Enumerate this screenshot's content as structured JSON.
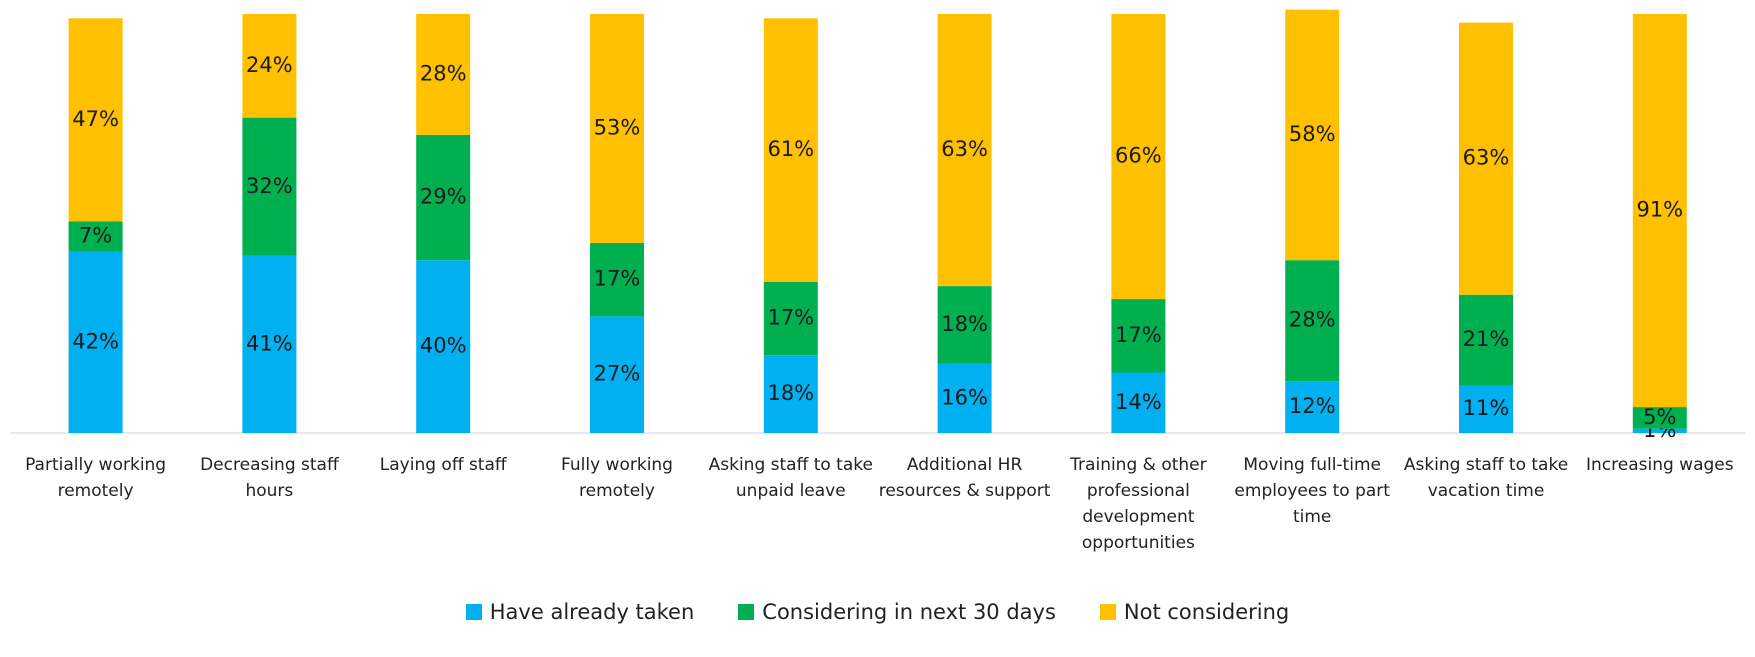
{
  "chart_data": {
    "type": "stacked_bar",
    "categories": [
      "Partially working remotely",
      "Decreasing staff hours",
      "Laying off staff",
      "Fully working remotely",
      "Asking staff to take unpaid leave",
      "Additional HR resources & support",
      "Training & other professional development opportunities",
      "Moving full-time employees to part time",
      "Asking staff to take vacation time",
      "Increasing wages"
    ],
    "series": [
      {
        "name": "Have already taken",
        "color": "#00b0f0",
        "values": [
          42,
          41,
          40,
          27,
          18,
          16,
          14,
          12,
          11,
          1
        ],
        "value_labels": [
          "42%",
          "41%",
          "40%",
          "27%",
          "18%",
          "16%",
          "14%",
          "12%",
          "11%",
          "1%"
        ]
      },
      {
        "name": "Considering in next 30 days",
        "color": "#00b050",
        "values": [
          7,
          32,
          29,
          17,
          17,
          18,
          17,
          28,
          21,
          5
        ],
        "value_labels": [
          "7%",
          "32%",
          "29%",
          "17%",
          "17%",
          "18%",
          "17%",
          "28%",
          "21%",
          "5%"
        ]
      },
      {
        "name": "Not considering",
        "color": "#ffc000",
        "values": [
          47,
          24,
          28,
          53,
          61,
          63,
          66,
          58,
          63,
          91
        ],
        "value_labels": [
          "47%",
          "24%",
          "28%",
          "53%",
          "61%",
          "63%",
          "66%",
          "58%",
          "63%",
          "91%"
        ]
      }
    ]
  }
}
